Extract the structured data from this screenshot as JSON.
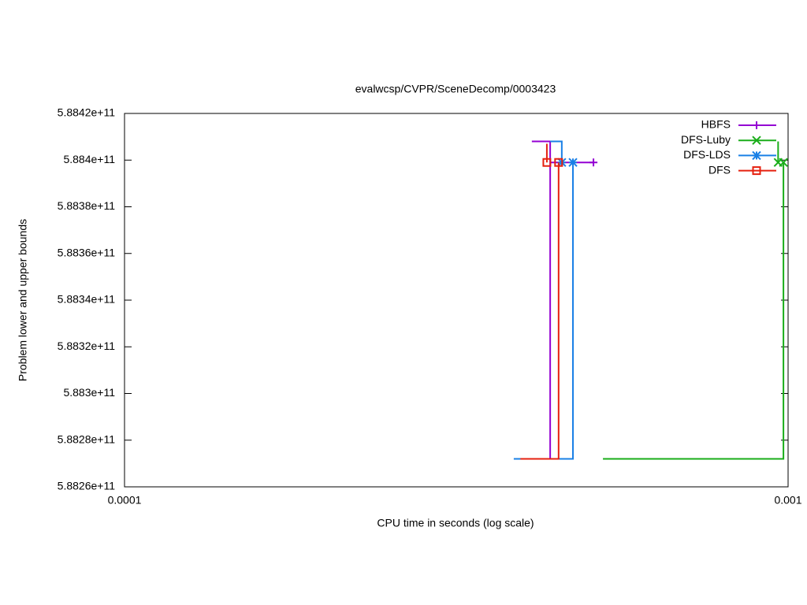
{
  "chart_data": {
    "type": "line",
    "title": "evalwcsp/CVPR/SceneDecomp/0003423",
    "x_label": "CPU time in seconds (log scale)",
    "y_label": "Problem lower and upper bounds",
    "x_scale": "log",
    "xlim": [
      0.0001,
      0.001
    ],
    "xticks": [
      0.0001,
      0.001
    ],
    "ylim": [
      588260000000,
      588420000000
    ],
    "yticks": [
      {
        "value": 588260000000,
        "label": "5.8826e+11"
      },
      {
        "value": 588280000000,
        "label": "5.8828e+11"
      },
      {
        "value": 588300000000,
        "label": "5.883e+11"
      },
      {
        "value": 588320000000,
        "label": "5.8832e+11"
      },
      {
        "value": 588340000000,
        "label": "5.8834e+11"
      },
      {
        "value": 588360000000,
        "label": "5.8836e+11"
      },
      {
        "value": 588380000000,
        "label": "5.8838e+11"
      },
      {
        "value": 588400000000,
        "label": "5.884e+11"
      },
      {
        "value": 588420000000,
        "label": "5.8842e+11"
      }
    ],
    "legend": "top-right",
    "series": [
      {
        "name": "HBFS",
        "color": "#9400d3",
        "marker": "plus",
        "x": [
          0.000411,
          0.000438,
          0.000438,
          0.000438,
          0.000509
        ],
        "values": [
          588408000000,
          588408000000,
          588272000000,
          588399000000,
          588399000000
        ]
      },
      {
        "name": "DFS-Luby",
        "color": "#1aad1a",
        "marker": "cross",
        "x": [
          0.000966,
          0.000966,
          null,
          0.000526,
          0.000984,
          0.000984
        ],
        "values": [
          588408000000,
          588399000000,
          null,
          588272000000,
          588272000000,
          588399000000
        ]
      },
      {
        "name": "DFS-LDS",
        "color": "#1a80e6",
        "marker": "star",
        "x": [
          0.000438,
          0.000456,
          0.000456,
          null,
          0.000386,
          0.000474,
          0.000474
        ],
        "values": [
          588408000000,
          588408000000,
          588399000000,
          null,
          588272000000,
          588272000000,
          588399000000
        ]
      },
      {
        "name": "DFS",
        "color": "#e5200f",
        "marker": "square",
        "x": [
          0.000433,
          0.000433,
          null,
          0.000395,
          0.000451,
          0.000451
        ],
        "values": [
          588407000000,
          588399000000,
          null,
          588272000000,
          588272000000,
          588399000000
        ]
      }
    ]
  }
}
